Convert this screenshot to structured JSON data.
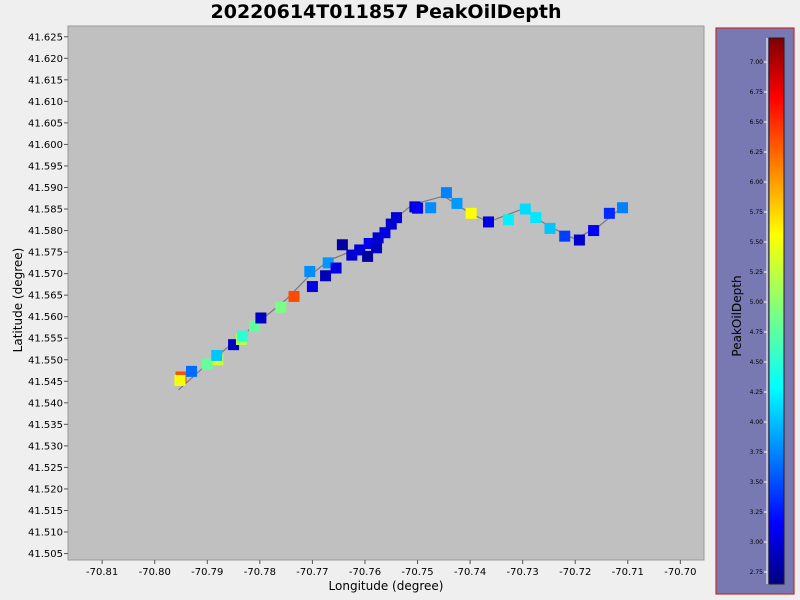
{
  "chart_data": {
    "type": "scatter",
    "title": "20220614T011857 PeakOilDepth",
    "xlabel": "Longitude (degree)",
    "ylabel": "Latitude (degree)",
    "xlim": [
      -70.8165,
      -70.6955
    ],
    "ylim": [
      41.5035,
      41.6275
    ],
    "xticks": [
      -70.81,
      -70.8,
      -70.79,
      -70.78,
      -70.77,
      -70.76,
      -70.75,
      -70.74,
      -70.73,
      -70.72,
      -70.71,
      -70.7
    ],
    "xtick_labels": [
      "-70.81",
      "-70.80",
      "-70.79",
      "-70.78",
      "-70.77",
      "-70.76",
      "-70.75",
      "-70.74",
      "-70.73",
      "-70.72",
      "-70.71",
      "-70.70"
    ],
    "yticks": [
      41.505,
      41.51,
      41.515,
      41.52,
      41.525,
      41.53,
      41.535,
      41.54,
      41.545,
      41.55,
      41.555,
      41.56,
      41.565,
      41.57,
      41.575,
      41.58,
      41.585,
      41.59,
      41.595,
      41.6,
      41.605,
      41.61,
      41.615,
      41.62,
      41.625
    ],
    "ytick_labels": [
      "41.505",
      "41.510",
      "41.515",
      "41.520",
      "41.525",
      "41.530",
      "41.535",
      "41.540",
      "41.545",
      "41.550",
      "41.555",
      "41.560",
      "41.565",
      "41.570",
      "41.575",
      "41.580",
      "41.585",
      "41.590",
      "41.595",
      "41.600",
      "41.605",
      "41.610",
      "41.615",
      "41.620",
      "41.625"
    ],
    "colorbar": {
      "label": "PeakOilDepth",
      "min": 2.65,
      "max": 7.2,
      "ticks": [
        2.75,
        3.0,
        3.25,
        3.5,
        3.75,
        4.0,
        4.25,
        4.5,
        4.75,
        5.0,
        5.25,
        5.5,
        5.75,
        6.0,
        6.25,
        6.5,
        6.75,
        7.0
      ],
      "tick_labels": [
        "2.75",
        "3.00",
        "3.25",
        "3.50",
        "3.75",
        "4.00",
        "4.25",
        "4.50",
        "4.75",
        "5.00",
        "5.25",
        "5.50",
        "5.75",
        "6.00",
        "6.25",
        "6.50",
        "6.75",
        "7.00"
      ],
      "colormap": "jet"
    },
    "track": [
      [
        -70.7955,
        41.543
      ],
      [
        -70.79,
        41.549
      ],
      [
        -70.785,
        41.554
      ],
      [
        -70.78,
        41.559
      ],
      [
        -70.775,
        41.564
      ],
      [
        -70.771,
        41.569
      ],
      [
        -70.767,
        41.573
      ],
      [
        -70.763,
        41.575
      ],
      [
        -70.759,
        41.577
      ],
      [
        -70.755,
        41.582
      ],
      [
        -70.751,
        41.586
      ],
      [
        -70.745,
        41.588
      ],
      [
        -70.74,
        41.584
      ],
      [
        -70.7365,
        41.582
      ],
      [
        -70.73,
        41.585
      ],
      [
        -70.725,
        41.581
      ],
      [
        -70.72,
        41.578
      ],
      [
        -70.7155,
        41.581
      ],
      [
        -70.7105,
        41.586
      ]
    ],
    "points": [
      {
        "x": -70.795,
        "y": 41.546,
        "value": 6.3
      },
      {
        "x": -70.7952,
        "y": 41.5452,
        "value": 5.45
      },
      {
        "x": -70.793,
        "y": 41.5473,
        "value": 3.7
      },
      {
        "x": -70.79,
        "y": 41.549,
        "value": 4.8
      },
      {
        "x": -70.788,
        "y": 41.55,
        "value": 5.3
      },
      {
        "x": -70.7882,
        "y": 41.551,
        "value": 4.1
      },
      {
        "x": -70.785,
        "y": 41.5535,
        "value": 2.95
      },
      {
        "x": -70.7835,
        "y": 41.5547,
        "value": 5.15
      },
      {
        "x": -70.7833,
        "y": 41.5555,
        "value": 4.55
      },
      {
        "x": -70.781,
        "y": 41.5578,
        "value": 4.8
      },
      {
        "x": -70.7798,
        "y": 41.5597,
        "value": 2.95
      },
      {
        "x": -70.776,
        "y": 41.5622,
        "value": 4.9
      },
      {
        "x": -70.7735,
        "y": 41.5647,
        "value": 6.3
      },
      {
        "x": -70.77,
        "y": 41.567,
        "value": 3.1
      },
      {
        "x": -70.7705,
        "y": 41.5705,
        "value": 3.85
      },
      {
        "x": -70.7675,
        "y": 41.5695,
        "value": 2.9
      },
      {
        "x": -70.767,
        "y": 41.5725,
        "value": 3.9
      },
      {
        "x": -70.7655,
        "y": 41.5713,
        "value": 3.1
      },
      {
        "x": -70.7643,
        "y": 41.5767,
        "value": 2.8
      },
      {
        "x": -70.7625,
        "y": 41.5743,
        "value": 3.0
      },
      {
        "x": -70.761,
        "y": 41.5755,
        "value": 3.05
      },
      {
        "x": -70.7595,
        "y": 41.574,
        "value": 2.8
      },
      {
        "x": -70.7592,
        "y": 41.577,
        "value": 3.15
      },
      {
        "x": -70.7578,
        "y": 41.576,
        "value": 2.95
      },
      {
        "x": -70.7575,
        "y": 41.5783,
        "value": 3.0
      },
      {
        "x": -70.7562,
        "y": 41.5795,
        "value": 3.1
      },
      {
        "x": -70.755,
        "y": 41.5815,
        "value": 3.0
      },
      {
        "x": -70.754,
        "y": 41.583,
        "value": 3.05
      },
      {
        "x": -70.7505,
        "y": 41.5855,
        "value": 3.0
      },
      {
        "x": -70.75,
        "y": 41.5852,
        "value": 3.2
      },
      {
        "x": -70.7475,
        "y": 41.5853,
        "value": 3.85
      },
      {
        "x": -70.7445,
        "y": 41.5888,
        "value": 3.8
      },
      {
        "x": -70.7425,
        "y": 41.5863,
        "value": 3.9
      },
      {
        "x": -70.7398,
        "y": 41.584,
        "value": 5.5
      },
      {
        "x": -70.7365,
        "y": 41.582,
        "value": 3.1
      },
      {
        "x": -70.7327,
        "y": 41.5825,
        "value": 4.3
      },
      {
        "x": -70.7295,
        "y": 41.585,
        "value": 4.2
      },
      {
        "x": -70.7275,
        "y": 41.583,
        "value": 4.25
      },
      {
        "x": -70.7248,
        "y": 41.5805,
        "value": 4.1
      },
      {
        "x": -70.722,
        "y": 41.5787,
        "value": 3.5
      },
      {
        "x": -70.7192,
        "y": 41.5778,
        "value": 3.0
      },
      {
        "x": -70.7165,
        "y": 41.58,
        "value": 3.2
      },
      {
        "x": -70.7135,
        "y": 41.584,
        "value": 3.4
      },
      {
        "x": -70.711,
        "y": 41.5853,
        "value": 3.8
      }
    ]
  }
}
